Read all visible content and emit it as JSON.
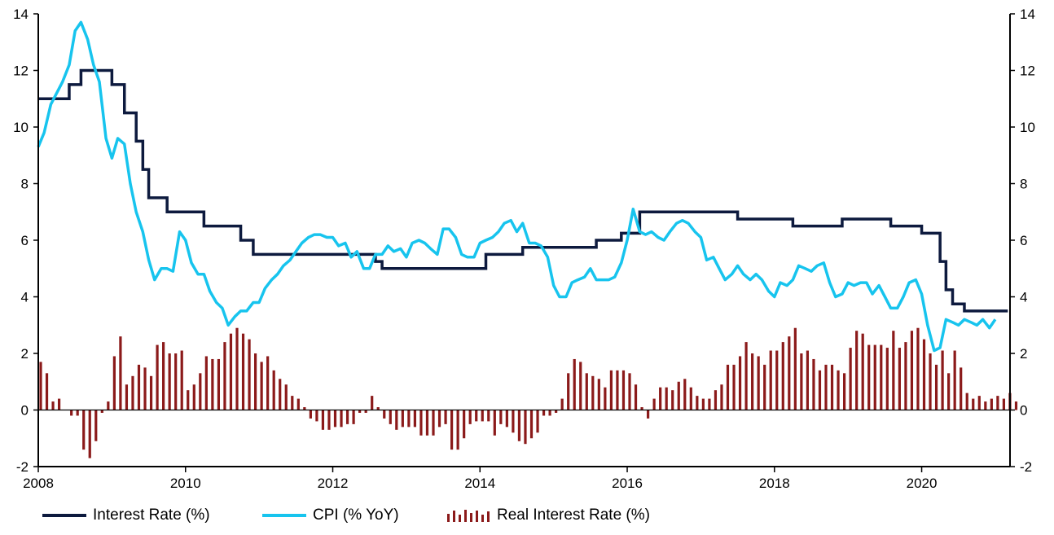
{
  "chart_data": {
    "type": "line",
    "title": "",
    "xlabel": "",
    "ylabel": "",
    "xlim": [
      2008.0,
      2021.2
    ],
    "ylim": [
      -2,
      14
    ],
    "y_ticks": [
      -2,
      0,
      2,
      4,
      6,
      8,
      10,
      12,
      14
    ],
    "x_ticks": [
      2008,
      2010,
      2012,
      2014,
      2016,
      2018,
      2020
    ],
    "y_tick_labels": [
      "-2",
      "0",
      "2",
      "4",
      "6",
      "8",
      "10",
      "12",
      "14"
    ],
    "x_tick_labels": [
      "2008",
      "2010",
      "2012",
      "2014",
      "2016",
      "2018",
      "2020"
    ],
    "grid": false,
    "secondary_axis": "right, same scale as left",
    "legend_position": "bottom",
    "colors": {
      "interest": "#0d1a3e",
      "cpi": "#17c4ee",
      "real": "#8b1a1a"
    },
    "series": [
      {
        "name": "Interest Rate (%)",
        "type": "step",
        "points": [
          [
            2008.0,
            11.0
          ],
          [
            2008.42,
            11.5
          ],
          [
            2008.58,
            12.0
          ],
          [
            2009.0,
            11.5
          ],
          [
            2009.17,
            10.5
          ],
          [
            2009.33,
            9.5
          ],
          [
            2009.42,
            8.5
          ],
          [
            2009.5,
            7.5
          ],
          [
            2009.75,
            7.0
          ],
          [
            2010.25,
            6.5
          ],
          [
            2010.75,
            6.0
          ],
          [
            2010.92,
            5.5
          ],
          [
            2012.58,
            5.25
          ],
          [
            2012.67,
            5.0
          ],
          [
            2014.08,
            5.5
          ],
          [
            2014.58,
            5.75
          ],
          [
            2015.58,
            6.0
          ],
          [
            2015.92,
            6.25
          ],
          [
            2016.17,
            7.0
          ],
          [
            2017.5,
            6.75
          ],
          [
            2018.25,
            6.5
          ],
          [
            2018.92,
            6.75
          ],
          [
            2019.58,
            6.5
          ],
          [
            2020.0,
            6.25
          ],
          [
            2020.25,
            5.25
          ],
          [
            2020.33,
            4.25
          ],
          [
            2020.42,
            3.75
          ],
          [
            2020.58,
            3.5
          ],
          [
            2021.17,
            3.5
          ]
        ]
      },
      {
        "name": "CPI (% YoY)",
        "type": "line",
        "points": [
          [
            2008.0,
            9.3
          ],
          [
            2008.08,
            9.8
          ],
          [
            2008.17,
            10.8
          ],
          [
            2008.25,
            11.2
          ],
          [
            2008.33,
            11.6
          ],
          [
            2008.42,
            12.2
          ],
          [
            2008.5,
            13.4
          ],
          [
            2008.58,
            13.7
          ],
          [
            2008.67,
            13.1
          ],
          [
            2008.75,
            12.2
          ],
          [
            2008.83,
            11.6
          ],
          [
            2008.92,
            9.6
          ],
          [
            2009.0,
            8.9
          ],
          [
            2009.08,
            9.6
          ],
          [
            2009.17,
            9.4
          ],
          [
            2009.25,
            8.0
          ],
          [
            2009.33,
            7.0
          ],
          [
            2009.42,
            6.3
          ],
          [
            2009.5,
            5.3
          ],
          [
            2009.58,
            4.6
          ],
          [
            2009.67,
            5.0
          ],
          [
            2009.75,
            5.0
          ],
          [
            2009.83,
            4.9
          ],
          [
            2009.92,
            6.3
          ],
          [
            2010.0,
            6.0
          ],
          [
            2010.08,
            5.2
          ],
          [
            2010.17,
            4.8
          ],
          [
            2010.25,
            4.8
          ],
          [
            2010.33,
            4.2
          ],
          [
            2010.42,
            3.8
          ],
          [
            2010.5,
            3.6
          ],
          [
            2010.58,
            3.0
          ],
          [
            2010.67,
            3.3
          ],
          [
            2010.75,
            3.5
          ],
          [
            2010.83,
            3.5
          ],
          [
            2010.92,
            3.8
          ],
          [
            2011.0,
            3.8
          ],
          [
            2011.08,
            4.3
          ],
          [
            2011.17,
            4.6
          ],
          [
            2011.25,
            4.8
          ],
          [
            2011.33,
            5.1
          ],
          [
            2011.42,
            5.3
          ],
          [
            2011.5,
            5.6
          ],
          [
            2011.58,
            5.9
          ],
          [
            2011.67,
            6.1
          ],
          [
            2011.75,
            6.2
          ],
          [
            2011.83,
            6.2
          ],
          [
            2011.92,
            6.1
          ],
          [
            2012.0,
            6.1
          ],
          [
            2012.08,
            5.8
          ],
          [
            2012.17,
            5.9
          ],
          [
            2012.25,
            5.4
          ],
          [
            2012.33,
            5.6
          ],
          [
            2012.42,
            5.0
          ],
          [
            2012.5,
            5.0
          ],
          [
            2012.58,
            5.5
          ],
          [
            2012.67,
            5.5
          ],
          [
            2012.75,
            5.8
          ],
          [
            2012.83,
            5.6
          ],
          [
            2012.92,
            5.7
          ],
          [
            2013.0,
            5.4
          ],
          [
            2013.08,
            5.9
          ],
          [
            2013.17,
            6.0
          ],
          [
            2013.25,
            5.9
          ],
          [
            2013.33,
            5.7
          ],
          [
            2013.42,
            5.5
          ],
          [
            2013.5,
            6.4
          ],
          [
            2013.58,
            6.4
          ],
          [
            2013.67,
            6.1
          ],
          [
            2013.75,
            5.5
          ],
          [
            2013.83,
            5.4
          ],
          [
            2013.92,
            5.4
          ],
          [
            2014.0,
            5.9
          ],
          [
            2014.08,
            6.0
          ],
          [
            2014.17,
            6.1
          ],
          [
            2014.25,
            6.3
          ],
          [
            2014.33,
            6.6
          ],
          [
            2014.42,
            6.7
          ],
          [
            2014.5,
            6.3
          ],
          [
            2014.58,
            6.6
          ],
          [
            2014.67,
            5.9
          ],
          [
            2014.75,
            5.9
          ],
          [
            2014.83,
            5.8
          ],
          [
            2014.92,
            5.4
          ],
          [
            2015.0,
            4.4
          ],
          [
            2015.08,
            4.0
          ],
          [
            2015.17,
            4.0
          ],
          [
            2015.25,
            4.5
          ],
          [
            2015.33,
            4.6
          ],
          [
            2015.42,
            4.7
          ],
          [
            2015.5,
            5.0
          ],
          [
            2015.58,
            4.6
          ],
          [
            2015.67,
            4.6
          ],
          [
            2015.75,
            4.6
          ],
          [
            2015.83,
            4.7
          ],
          [
            2015.92,
            5.2
          ],
          [
            2016.0,
            6.0
          ],
          [
            2016.08,
            7.1
          ],
          [
            2016.17,
            6.3
          ],
          [
            2016.25,
            6.2
          ],
          [
            2016.33,
            6.3
          ],
          [
            2016.42,
            6.1
          ],
          [
            2016.5,
            6.0
          ],
          [
            2016.58,
            6.3
          ],
          [
            2016.67,
            6.6
          ],
          [
            2016.75,
            6.7
          ],
          [
            2016.83,
            6.6
          ],
          [
            2016.92,
            6.3
          ],
          [
            2017.0,
            6.1
          ],
          [
            2017.08,
            5.3
          ],
          [
            2017.17,
            5.4
          ],
          [
            2017.25,
            5.0
          ],
          [
            2017.33,
            4.6
          ],
          [
            2017.42,
            4.8
          ],
          [
            2017.5,
            5.1
          ],
          [
            2017.58,
            4.8
          ],
          [
            2017.67,
            4.6
          ],
          [
            2017.75,
            4.8
          ],
          [
            2017.83,
            4.6
          ],
          [
            2017.92,
            4.2
          ],
          [
            2018.0,
            4.0
          ],
          [
            2018.08,
            4.5
          ],
          [
            2018.17,
            4.4
          ],
          [
            2018.25,
            4.6
          ],
          [
            2018.33,
            5.1
          ],
          [
            2018.42,
            5.0
          ],
          [
            2018.5,
            4.9
          ],
          [
            2018.58,
            5.1
          ],
          [
            2018.67,
            5.2
          ],
          [
            2018.75,
            4.5
          ],
          [
            2018.83,
            4.0
          ],
          [
            2018.92,
            4.1
          ],
          [
            2019.0,
            4.5
          ],
          [
            2019.08,
            4.4
          ],
          [
            2019.17,
            4.5
          ],
          [
            2019.25,
            4.5
          ],
          [
            2019.33,
            4.1
          ],
          [
            2019.42,
            4.4
          ],
          [
            2019.5,
            4.0
          ],
          [
            2019.58,
            3.6
          ],
          [
            2019.67,
            3.6
          ],
          [
            2019.75,
            4.0
          ],
          [
            2019.83,
            4.5
          ],
          [
            2019.92,
            4.6
          ],
          [
            2020.0,
            4.1
          ],
          [
            2020.08,
            3.0
          ],
          [
            2020.17,
            2.1
          ],
          [
            2020.25,
            2.2
          ],
          [
            2020.33,
            3.2
          ],
          [
            2020.42,
            3.1
          ],
          [
            2020.5,
            3.0
          ],
          [
            2020.58,
            3.2
          ],
          [
            2020.67,
            3.1
          ],
          [
            2020.75,
            3.0
          ],
          [
            2020.83,
            3.2
          ],
          [
            2020.92,
            2.9
          ],
          [
            2021.0,
            3.2
          ]
        ]
      },
      {
        "name": "Real Interest Rate (%)",
        "type": "bar",
        "x_start": 2008.0,
        "step": 0.08333,
        "values": [
          1.7,
          1.3,
          0.3,
          0.4,
          0.0,
          -0.2,
          -0.2,
          -1.4,
          -1.7,
          -1.1,
          -0.1,
          0.3,
          1.9,
          2.6,
          0.9,
          1.2,
          1.6,
          1.5,
          1.2,
          2.3,
          2.4,
          2.0,
          2.0,
          2.1,
          0.7,
          0.9,
          1.3,
          1.9,
          1.8,
          1.8,
          2.4,
          2.7,
          2.9,
          2.7,
          2.5,
          2.0,
          1.7,
          1.9,
          1.4,
          1.1,
          0.9,
          0.5,
          0.4,
          0.1,
          -0.3,
          -0.4,
          -0.7,
          -0.7,
          -0.6,
          -0.6,
          -0.5,
          -0.5,
          -0.1,
          -0.1,
          0.5,
          0.1,
          -0.3,
          -0.5,
          -0.7,
          -0.6,
          -0.6,
          -0.6,
          -0.9,
          -0.9,
          -0.9,
          -0.6,
          -0.5,
          -1.4,
          -1.4,
          -1.0,
          -0.5,
          -0.4,
          -0.4,
          -0.4,
          -0.9,
          -0.5,
          -0.6,
          -0.8,
          -1.1,
          -1.2,
          -1.0,
          -0.8,
          -0.2,
          -0.2,
          -0.1,
          0.4,
          1.3,
          1.8,
          1.7,
          1.3,
          1.2,
          1.1,
          0.8,
          1.4,
          1.4,
          1.4,
          1.3,
          0.9,
          0.1,
          -0.3,
          0.4,
          0.8,
          0.8,
          0.7,
          1.0,
          1.1,
          0.8,
          0.5,
          0.4,
          0.4,
          0.7,
          0.9,
          1.6,
          1.6,
          1.9,
          2.4,
          2.0,
          1.9,
          1.6,
          2.1,
          2.1,
          2.4,
          2.6,
          2.9,
          2.0,
          2.1,
          1.8,
          1.4,
          1.6,
          1.6,
          1.4,
          1.3,
          2.2,
          2.8,
          2.7,
          2.3,
          2.3,
          2.3,
          2.2,
          2.8,
          2.2,
          2.4,
          2.8,
          2.9,
          2.5,
          2.0,
          1.6,
          2.1,
          1.3,
          2.1,
          1.5,
          0.6,
          0.4,
          0.5,
          0.3,
          0.4,
          0.5,
          0.4,
          0.6,
          0.3
        ]
      }
    ]
  },
  "legend": {
    "interest_label": "Interest Rate (%)",
    "cpi_label": "CPI (% YoY)",
    "real_label": "Real Interest Rate (%)"
  }
}
